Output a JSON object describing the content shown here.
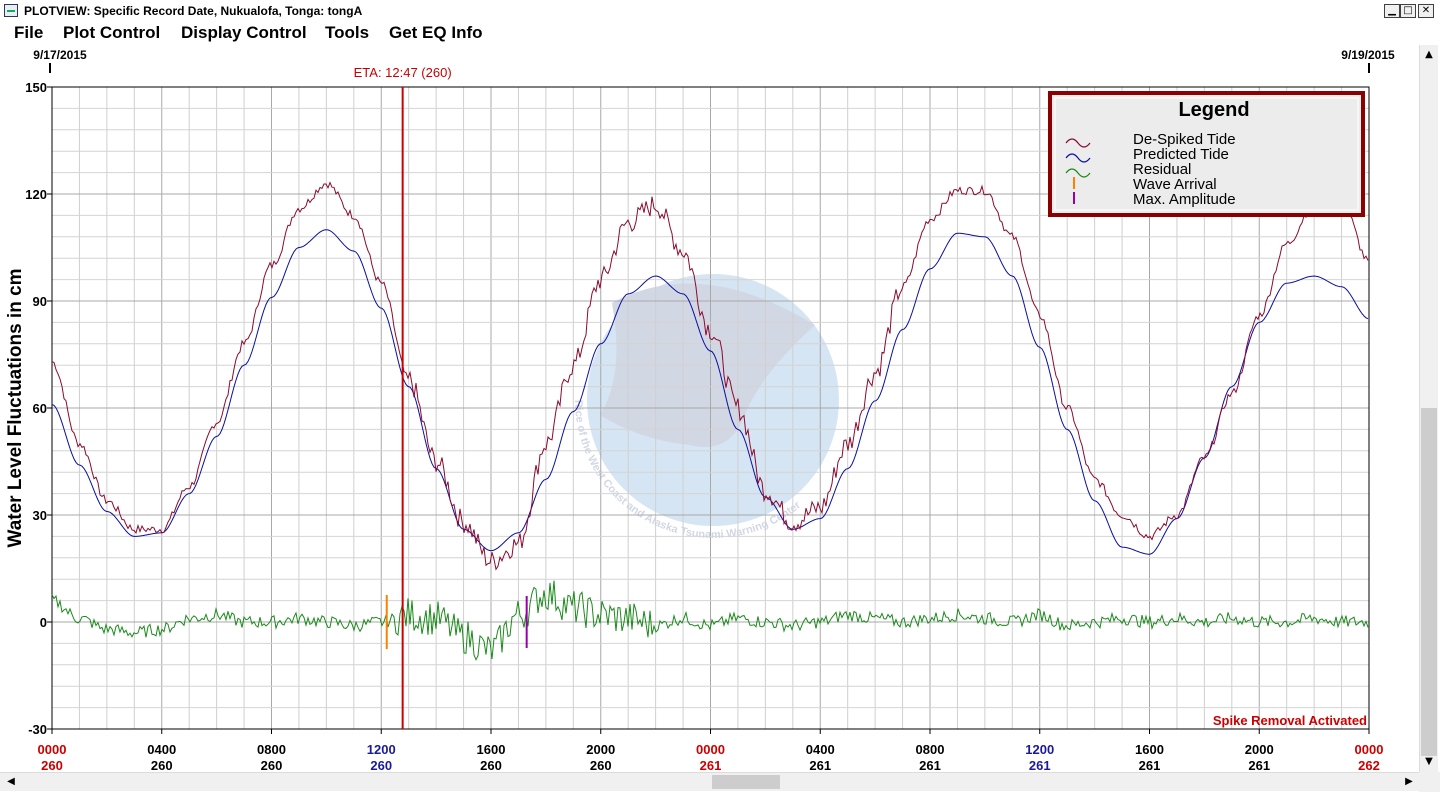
{
  "window": {
    "title": "PLOTVIEW: Specific Record Date, Nukualofa, Tonga: tongA",
    "minimize_icon": "minimize-icon",
    "maximize_icon": "maximize-icon",
    "close_icon": "close-icon"
  },
  "menu": [
    "File",
    "Plot Control",
    "Display Control",
    "Tools",
    "Get EQ Info"
  ],
  "header": {
    "start_date": "9/17/2015",
    "end_date": "9/19/2015",
    "eta_label": "ETA: 12:47 (260)"
  },
  "colors": {
    "despiked": "#8b0a2e",
    "predicted": "#0a10a0",
    "residual": "#1a8a1a",
    "wave_arrival": "#ff8000",
    "max_amplitude": "#9900aa",
    "eta_line": "#cc0000",
    "legend_border": "#8b0000",
    "legend_bg": "#ececec",
    "axis_red": "#cc0000",
    "axis_blue": "#1a1a9a"
  },
  "legend": {
    "title": "Legend",
    "items": [
      "De-Spiked Tide",
      "Predicted Tide",
      "Residual",
      "Wave Arrival",
      "Max. Amplitude"
    ]
  },
  "status": {
    "spike_removal": "Spike Removal Activated"
  },
  "watermark": {
    "text": "Rice of the West Coast and Alaska Tsunami Warning Center"
  },
  "chart_data": {
    "type": "line",
    "ylabel": "Water Level Fluctuations in cm",
    "xlabel": "",
    "ylim": [
      -30,
      150
    ],
    "y_ticks": [
      150,
      120,
      90,
      60,
      30,
      0,
      -30
    ],
    "xlim": [
      0,
      48
    ],
    "x_units": "hours from 0000 day 260",
    "x_ticks": [
      {
        "time": "0000",
        "day": "260",
        "tone": "red"
      },
      {
        "time": "0400",
        "day": "260",
        "tone": "black"
      },
      {
        "time": "0800",
        "day": "260",
        "tone": "black"
      },
      {
        "time": "1200",
        "day": "260",
        "tone": "blue"
      },
      {
        "time": "1600",
        "day": "260",
        "tone": "black"
      },
      {
        "time": "2000",
        "day": "260",
        "tone": "black"
      },
      {
        "time": "0000",
        "day": "261",
        "tone": "red"
      },
      {
        "time": "0400",
        "day": "261",
        "tone": "black"
      },
      {
        "time": "0800",
        "day": "261",
        "tone": "black"
      },
      {
        "time": "1200",
        "day": "261",
        "tone": "blue"
      },
      {
        "time": "1600",
        "day": "261",
        "tone": "black"
      },
      {
        "time": "2000",
        "day": "261",
        "tone": "black"
      },
      {
        "time": "0000",
        "day": "262",
        "tone": "red"
      }
    ],
    "grid": true,
    "legend_position": "top-right",
    "series": [
      {
        "name": "Predicted Tide",
        "x": [
          0,
          1,
          2,
          3,
          4,
          5,
          6,
          7,
          8,
          9,
          10,
          11,
          12,
          13,
          14,
          15,
          16,
          17,
          18,
          19,
          20,
          21,
          22,
          23,
          24,
          25,
          26,
          27,
          28,
          29,
          30,
          31,
          32,
          33,
          34,
          35,
          36,
          37,
          38,
          39,
          40,
          41,
          42,
          43,
          44,
          45,
          46,
          47,
          48
        ],
        "y": [
          61,
          44,
          31,
          24,
          25,
          36,
          52,
          72,
          91,
          105,
          110,
          104,
          88,
          66,
          43,
          26,
          20,
          25,
          40,
          59,
          78,
          92,
          97,
          92,
          76,
          54,
          35,
          26,
          29,
          43,
          62,
          82,
          99,
          109,
          108,
          97,
          77,
          54,
          34,
          21,
          19,
          29,
          46,
          66,
          84,
          95,
          97,
          94,
          85
        ]
      },
      {
        "name": "De-Spiked Tide",
        "x": [
          0,
          1,
          2,
          3,
          4,
          5,
          6,
          7,
          8,
          9,
          10,
          11,
          12,
          13,
          14,
          15,
          16,
          17,
          18,
          19,
          20,
          21,
          22,
          23,
          24,
          25,
          26,
          27,
          28,
          29,
          30,
          31,
          32,
          33,
          34,
          35,
          36,
          37,
          38,
          39,
          40,
          41,
          42,
          43,
          44,
          45,
          46,
          47,
          48
        ],
        "y": [
          73,
          50,
          34,
          26,
          26,
          38,
          56,
          78,
          100,
          116,
          123,
          114,
          95,
          68,
          45,
          28,
          17,
          22,
          50,
          72,
          96,
          112,
          117,
          104,
          82,
          60,
          37,
          28,
          32,
          50,
          70,
          94,
          113,
          121,
          121,
          108,
          86,
          60,
          40,
          30,
          24,
          30,
          46,
          64,
          86,
          106,
          117,
          118,
          101
        ]
      },
      {
        "name": "Residual",
        "x": [
          0,
          1,
          2,
          3,
          4,
          5,
          6,
          7,
          8,
          9,
          10,
          11,
          12,
          13,
          14,
          15,
          16,
          17,
          18,
          19,
          20,
          21,
          22,
          23,
          24,
          25,
          26,
          27,
          28,
          29,
          30,
          31,
          32,
          33,
          34,
          35,
          36,
          37,
          38,
          39,
          40,
          41,
          42,
          43,
          44,
          45,
          46,
          47,
          48
        ],
        "y": [
          6,
          1,
          -2,
          -3,
          -2,
          1,
          2,
          0,
          0,
          1,
          0,
          -1,
          0,
          2,
          1,
          -4,
          -8,
          2,
          8,
          4,
          2,
          1,
          -1,
          1,
          -1,
          1,
          0,
          -1,
          0,
          2,
          1,
          0,
          1,
          2,
          1,
          0,
          2,
          -1,
          0,
          1,
          0,
          1,
          0,
          1,
          0,
          0,
          1,
          0,
          0
        ]
      },
      {
        "name": "Wave Arrival",
        "x": [
          12.2
        ],
        "y": [
          0
        ]
      },
      {
        "name": "Max. Amplitude",
        "x": [
          17.3
        ],
        "y": [
          0
        ]
      }
    ],
    "eta_x": 12.78
  }
}
